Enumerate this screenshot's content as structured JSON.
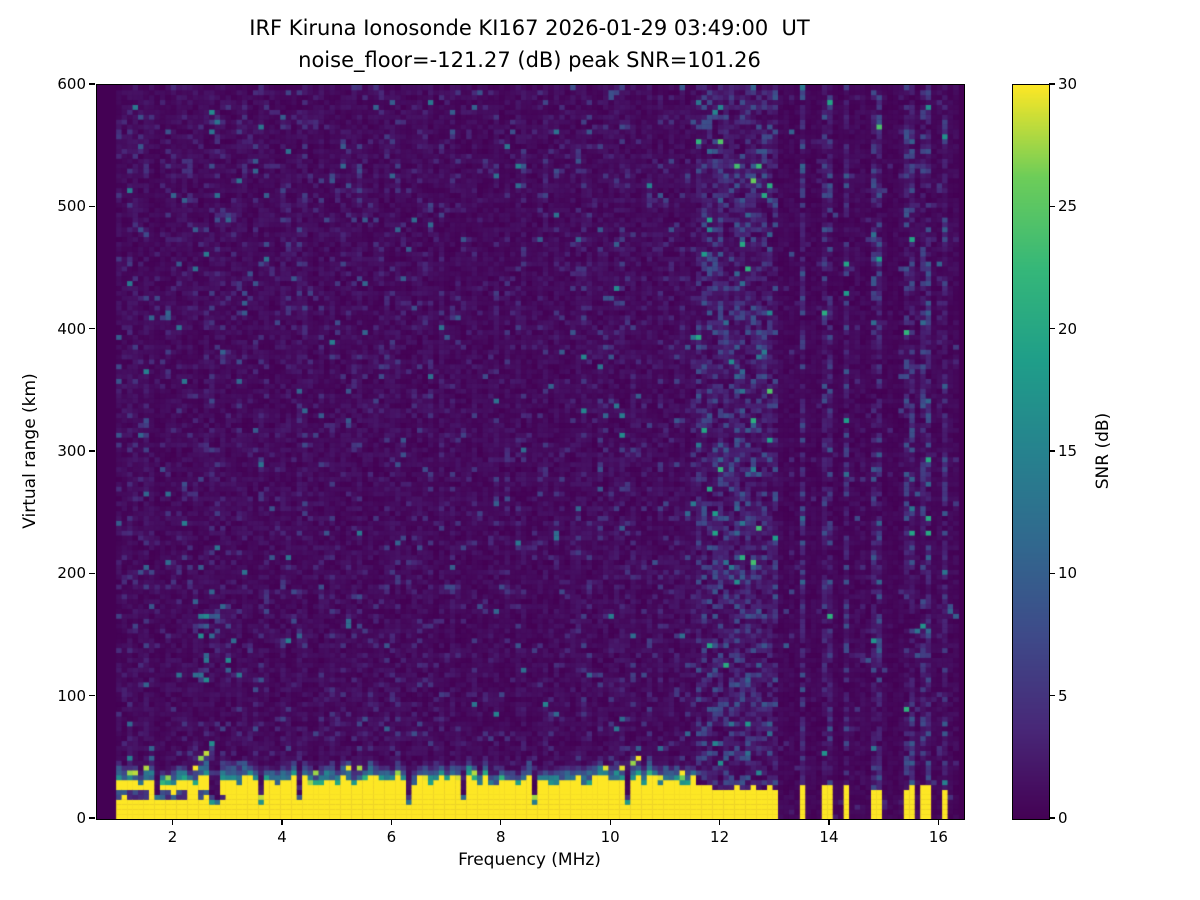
{
  "figure": {
    "title_line1": "IRF Kiruna Ionosonde KI167 2026-01-29 03:49:00  UT",
    "title_line2": "noise_floor=-121.27 (dB) peak SNR=101.26",
    "xlabel": "Frequency (MHz)",
    "ylabel": "Virtual range (km)",
    "colorbar_label": "SNR (dB)"
  },
  "chart_data": {
    "type": "heatmap",
    "title": "IRF Kiruna Ionosonde KI167 2026-01-29 03:49:00  UT\nnoise_floor=-121.27 (dB) peak SNR=101.26",
    "xlabel": "Frequency (MHz)",
    "ylabel": "Virtual range (km)",
    "colormap": "viridis",
    "background_color": "#440154",
    "peak_color": "#fde725",
    "xlim": [
      0.6,
      16.45
    ],
    "ylim": [
      0,
      600
    ],
    "x_ticks": [
      2,
      4,
      6,
      8,
      10,
      12,
      14,
      16
    ],
    "y_ticks": [
      0,
      100,
      200,
      300,
      400,
      500,
      600
    ],
    "colorbar": {
      "label": "SNR (dB)",
      "min": 0,
      "max": 30,
      "ticks": [
        0,
        5,
        10,
        15,
        20,
        25,
        30
      ]
    },
    "noise_floor_db": -121.27,
    "peak_snr_db": 101.26,
    "freq_range_mhz": [
      1.0,
      16.3
    ],
    "freq_step_mhz": 0.1,
    "range_step_km": 4,
    "ground_echo": {
      "freq_span_mhz": [
        1.0,
        11.55
      ],
      "top_km": 30,
      "fringe_km": 14,
      "value_db": 30,
      "notch_freqs_mhz": [
        1.7,
        2.75,
        3.6,
        4.3,
        6.3,
        7.3,
        8.6,
        10.3
      ]
    },
    "inner_gap": {
      "freq_span_mhz": [
        1.0,
        3.1
      ],
      "range_span_km": [
        16,
        22
      ]
    },
    "sporadic_cluster": {
      "freq_span_mhz": [
        2.4,
        3.3
      ],
      "range_span_km": [
        110,
        185
      ]
    },
    "restricted_band_start_mhz": 11.55,
    "stripe_freqs_mhz": [
      11.65,
      11.8,
      11.95,
      12.1,
      12.25,
      12.4,
      12.55,
      12.7,
      12.85,
      13.0,
      13.5,
      13.95,
      14.3,
      14.85,
      15.45,
      15.75,
      16.1
    ],
    "seed": 20260129
  }
}
